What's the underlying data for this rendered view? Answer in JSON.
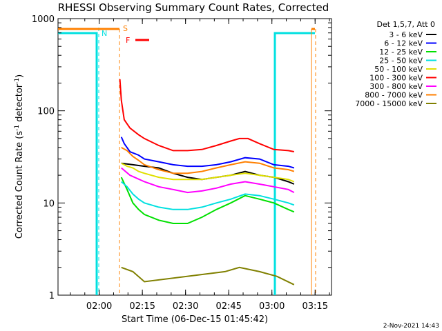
{
  "chart_data": {
    "type": "line",
    "title": "RHESSI Observing Summary Count Rates, Corrected",
    "xlabel": "Start Time (06-Dec-15 01:45:42)",
    "ylabel_main": "Corrected Count Rate (s",
    "ylabel_sup1": "-1",
    "ylabel_mid": " detector",
    "ylabel_sup2": "-1",
    "ylabel_end": ")",
    "yscale": "log",
    "ylim": [
      1,
      1000
    ],
    "xlim_minutes": [
      0,
      95
    ],
    "x_ticks": [
      {
        "label": "02:00",
        "minutes": 14.3
      },
      {
        "label": "02:15",
        "minutes": 29.3
      },
      {
        "label": "02:30",
        "minutes": 44.3
      },
      {
        "label": "02:45",
        "minutes": 59.3
      },
      {
        "label": "03:00",
        "minutes": 74.3
      },
      {
        "label": "03:15",
        "minutes": 89.3
      }
    ],
    "y_ticks": [
      {
        "label": "1",
        "value": 1
      },
      {
        "label": "10",
        "value": 10
      },
      {
        "label": "100",
        "value": 100
      },
      {
        "label": "1000",
        "value": 1000
      }
    ],
    "legend_header": "Det 1,5,7, Att 0",
    "legend_placement": "right",
    "series": [
      {
        "name": "3 - 6 keV",
        "color": "#000000",
        "values": [
          [
            22,
            27
          ],
          [
            26,
            26
          ],
          [
            30,
            25
          ],
          [
            35,
            24
          ],
          [
            40,
            21
          ],
          [
            45,
            19
          ],
          [
            50,
            18
          ],
          [
            55,
            19
          ],
          [
            60,
            20
          ],
          [
            65,
            22
          ],
          [
            70,
            20
          ],
          [
            75,
            19
          ],
          [
            80,
            17
          ],
          [
            82,
            16
          ]
        ]
      },
      {
        "name": "6 - 12 keV",
        "color": "#0000ff",
        "values": [
          [
            22,
            52
          ],
          [
            23,
            44
          ],
          [
            25,
            36
          ],
          [
            28,
            33
          ],
          [
            30,
            30
          ],
          [
            35,
            28
          ],
          [
            40,
            26
          ],
          [
            45,
            25
          ],
          [
            50,
            25
          ],
          [
            55,
            26
          ],
          [
            60,
            28
          ],
          [
            65,
            31
          ],
          [
            70,
            30
          ],
          [
            75,
            26
          ],
          [
            80,
            25
          ],
          [
            82,
            24
          ]
        ]
      },
      {
        "name": "12 - 25 keV",
        "color": "#00e000",
        "values": [
          [
            22,
            19
          ],
          [
            24,
            14
          ],
          [
            26,
            10
          ],
          [
            28,
            8.5
          ],
          [
            30,
            7.5
          ],
          [
            35,
            6.5
          ],
          [
            40,
            6
          ],
          [
            45,
            6
          ],
          [
            50,
            7
          ],
          [
            55,
            8.5
          ],
          [
            60,
            10
          ],
          [
            65,
            12
          ],
          [
            70,
            11
          ],
          [
            75,
            10
          ],
          [
            80,
            8.5
          ],
          [
            82,
            8
          ]
        ]
      },
      {
        "name": "25 - 50 keV",
        "color": "#00e0e0",
        "values": [
          [
            22,
            17
          ],
          [
            24,
            15
          ],
          [
            26,
            12.5
          ],
          [
            28,
            11
          ],
          [
            30,
            10
          ],
          [
            35,
            9
          ],
          [
            40,
            8.5
          ],
          [
            45,
            8.5
          ],
          [
            50,
            9
          ],
          [
            55,
            10
          ],
          [
            60,
            11
          ],
          [
            65,
            12.5
          ],
          [
            70,
            12
          ],
          [
            75,
            11
          ],
          [
            80,
            10
          ],
          [
            82,
            9.5
          ]
        ]
      },
      {
        "name": "50 - 100 keV",
        "color": "#e0e000",
        "values": [
          [
            22,
            27
          ],
          [
            24,
            25
          ],
          [
            26,
            24
          ],
          [
            28,
            22
          ],
          [
            30,
            21
          ],
          [
            35,
            19
          ],
          [
            40,
            18
          ],
          [
            45,
            18
          ],
          [
            50,
            18
          ],
          [
            55,
            19
          ],
          [
            60,
            20
          ],
          [
            65,
            21
          ],
          [
            70,
            20
          ],
          [
            75,
            19
          ],
          [
            80,
            18
          ],
          [
            82,
            17
          ]
        ]
      },
      {
        "name": "100 - 300 keV",
        "color": "#ff0000",
        "values": [
          [
            21.5,
            220
          ],
          [
            22,
            130
          ],
          [
            23,
            80
          ],
          [
            25,
            65
          ],
          [
            28,
            55
          ],
          [
            30,
            50
          ],
          [
            35,
            42
          ],
          [
            40,
            37
          ],
          [
            45,
            37
          ],
          [
            50,
            38
          ],
          [
            55,
            42
          ],
          [
            60,
            47
          ],
          [
            63,
            50
          ],
          [
            66,
            50
          ],
          [
            70,
            44
          ],
          [
            75,
            38
          ],
          [
            80,
            37
          ],
          [
            82,
            36
          ]
        ]
      },
      {
        "name": "300 - 800 keV",
        "color": "#ff00ff",
        "values": [
          [
            22,
            24
          ],
          [
            25,
            20
          ],
          [
            30,
            17
          ],
          [
            35,
            15
          ],
          [
            40,
            14
          ],
          [
            45,
            13
          ],
          [
            50,
            13.5
          ],
          [
            55,
            14.5
          ],
          [
            60,
            16
          ],
          [
            65,
            17
          ],
          [
            70,
            16
          ],
          [
            75,
            15
          ],
          [
            80,
            14
          ],
          [
            82,
            13
          ]
        ]
      },
      {
        "name": "800 - 7000 keV",
        "color": "#ff8000",
        "values": [
          [
            22,
            40
          ],
          [
            24,
            37
          ],
          [
            26,
            32
          ],
          [
            28,
            29
          ],
          [
            30,
            26
          ],
          [
            35,
            23
          ],
          [
            40,
            21
          ],
          [
            45,
            21
          ],
          [
            50,
            22
          ],
          [
            55,
            24
          ],
          [
            60,
            26
          ],
          [
            65,
            28
          ],
          [
            70,
            27
          ],
          [
            75,
            24
          ],
          [
            80,
            23
          ],
          [
            82,
            22
          ]
        ]
      },
      {
        "name": "7000 - 15000 keV",
        "color": "#808000",
        "values": [
          [
            22,
            2.0
          ],
          [
            26,
            1.8
          ],
          [
            30,
            1.4
          ],
          [
            58,
            1.8
          ],
          [
            63,
            2.0
          ],
          [
            70,
            1.8
          ],
          [
            76,
            1.6
          ],
          [
            82,
            1.3
          ]
        ]
      }
    ],
    "state_lines": [
      {
        "label": "N",
        "color": "#00e0e0"
      },
      {
        "label": "S",
        "color": "#ff8000"
      },
      {
        "label": "F",
        "color": "#ff0000"
      }
    ],
    "timestamp": "2-Nov-2021 14:43"
  }
}
